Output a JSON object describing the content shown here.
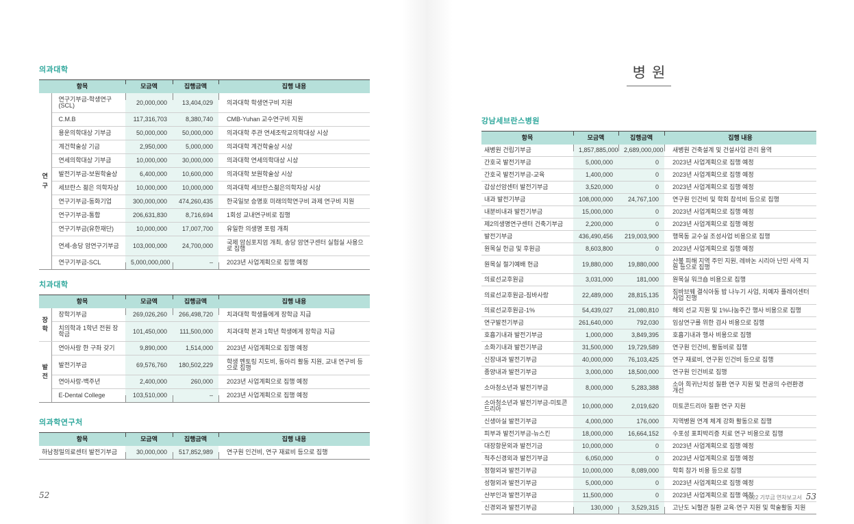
{
  "report": {
    "colors": {
      "accent": "#2fa79c",
      "table_header_bg": "#b6e0da",
      "amount_column_bg": "#e8f5f2"
    },
    "left_page": {
      "page_number": "52",
      "sections": [
        {
          "title": "의과대학",
          "columns": [
            "항목",
            "모금액",
            "집행금액",
            "집행 내용"
          ],
          "groups": [
            {
              "label": "연구",
              "span": 12
            }
          ],
          "rows": [
            [
              "연구기부금-학생연구(SCL)",
              "20,000,000",
              "13,404,029",
              "의과대학 학생연구비 지원"
            ],
            [
              "C.M.B",
              "117,316,703",
              "8,380,740",
              "CMB-Yuhan 교수연구비 지원"
            ],
            [
              "용운의학대상 기부금",
              "50,000,000",
              "50,000,000",
              "의과대학 주관 연세조락교의학대상 시상"
            ],
            [
              "계건학술상 기금",
              "2,950,000",
              "5,000,000",
              "의과대학 계건학술상 시상"
            ],
            [
              "연세의학대상 기부금",
              "10,000,000",
              "30,000,000",
              "의과대학 연세의학대상 시상"
            ],
            [
              "발전기부금-보원학술상",
              "6,400,000",
              "10,600,000",
              "의과대학 보원학술상 시상"
            ],
            [
              "세브란스 젊은 의학자상",
              "10,000,000",
              "10,000,000",
              "의과대학 세브란스젊은의학자상 시상"
            ],
            [
              "연구기부금-동화기업",
              "300,000,000",
              "474,260,435",
              "한국일보 승명호 미래의학연구비 과제 연구비 지원"
            ],
            [
              "연구기부금-통합",
              "206,631,830",
              "8,716,694",
              "1회성 교내연구비로 집행"
            ],
            [
              "연구기부금(유한재단)",
              "10,000,000",
              "17,007,700",
              "유일한 의생명 포럼 개최"
            ],
            [
              "연세-송당 암연구기부금",
              "103,000,000",
              "24,700,000",
              "국제 암심포지엄 개최, 송당 암연구센터 실험실 사용으로 집행"
            ],
            [
              "연구기부금-SCL",
              "5,000,000,000",
              "–",
              "2023년 사업계획으로 집행 예정"
            ]
          ]
        },
        {
          "title": "치과대학",
          "columns": [
            "항목",
            "모금액",
            "집행금액",
            "집행 내용"
          ],
          "groups": [
            {
              "label": "장학",
              "span": 2
            },
            {
              "label": "발전",
              "span": 4
            }
          ],
          "rows": [
            [
              "장학기부금",
              "269,026,260",
              "266,498,720",
              "치과대학 학생들에게 장학금 지급"
            ],
            [
              "치의학과 1학년 전원 장학금",
              "101,450,000",
              "111,500,000",
              "치과대학 본과 1학년 학생에게 장학금 지급"
            ],
            [
              "연아사랑 한 구좌 갖기",
              "9,890,000",
              "1,514,000",
              "2023년 사업계획으로 집행 예정"
            ],
            [
              "발전기부금",
              "69,576,760",
              "180,502,229",
              "학생 멘토링 지도비, 동아리 활동 지원, 교내 연구비 등으로 집행"
            ],
            [
              "연아사랑-백주년",
              "2,400,000",
              "260,000",
              "2023년 사업계획으로 집행 예정"
            ],
            [
              "E-Dental College",
              "103,510,000",
              "–",
              "2023년 사업계획으로 집행 예정"
            ]
          ]
        },
        {
          "title": "의과학연구처",
          "columns": [
            "항목",
            "모금액",
            "집행금액",
            "집행 내용"
          ],
          "rows": [
            [
              "하남정밀의료센터 발전기부금",
              "30,000,000",
              "517,852,989",
              "연구원 인건비, 연구 재료비 등으로 집행"
            ]
          ]
        }
      ]
    },
    "right_page": {
      "page_title": "병원",
      "page_number": "53",
      "footer_text": "2022 기부금 연차보고서",
      "sections": [
        {
          "title": "강남세브란스병원",
          "columns": [
            "항목",
            "모금액",
            "집행금액",
            "집행 내용"
          ],
          "rows": [
            [
              "새병원 건립기부금",
              "1,857,885,000",
              "2,689,000,000",
              "새병원 건축설계 및 건설사업 관리 용역"
            ],
            [
              "간호국 발전기부금",
              "5,000,000",
              "0",
              "2023년 사업계획으로 집행 예정"
            ],
            [
              "간호국 발전기부금-교육",
              "1,400,000",
              "0",
              "2023년 사업계획으로 집행 예정"
            ],
            [
              "갑상선암센터 발전기부금",
              "3,520,000",
              "0",
              "2023년 사업계획으로 집행 예정"
            ],
            [
              "내과 발전기부금",
              "108,000,000",
              "24,767,100",
              "연구원 인건비 및 학회 참석비 등으로 집행"
            ],
            [
              "내분비내과 발전기부금",
              "15,000,000",
              "0",
              "2023년 사업계획으로 집행 예정"
            ],
            [
              "제2의생명연구센터 건축기부금",
              "2,200,000",
              "0",
              "2023년 사업계획으로 집행 예정"
            ],
            [
              "발전기부금",
              "436,490,456",
              "219,003,900",
              "행목동 교수실 조성사업 비용으로 집행"
            ],
            [
              "원목실 헌금 및 후원금",
              "8,603,800",
              "0",
              "2023년 사업계획으로 집행 예정"
            ],
            [
              "원목실 절기예배 헌금",
              "19,880,000",
              "19,880,000",
              "산불 피해 지역 주민 지원, 레바논 시리아 난민 사역 지원 등으로 집행"
            ],
            [
              "의료선교후원금",
              "3,031,000",
              "181,000",
              "원목실 워크숍 비용으로 집행"
            ],
            [
              "의료선교후원금-짐바사랑",
              "22,489,000",
              "28,815,135",
              "짐바브웨 결식아동 밥 나누기 사업, 치예자 플레이센터 사업 진행"
            ],
            [
              "의료선교후원금-1%",
              "54,439,027",
              "21,080,810",
              "해외 선교 지원 및 1%나눔주간 행사 비용으로 집행"
            ],
            [
              "연구발전기부금",
              "261,640,000",
              "792,030",
              "임상연구를 위한 검사 비용으로 집행"
            ],
            [
              "호흡기내과 발전기부금",
              "1,000,000",
              "3,849,395",
              "호흡기내과 행사 비용으로 집행"
            ],
            [
              "소화기내과 발전기부금",
              "31,500,000",
              "19,729,589",
              "연구원 인건비, 활동비로 집행"
            ],
            [
              "신장내과 발전기부금",
              "40,000,000",
              "76,103,425",
              "연구 재료비, 연구원 인건비 등으로 집행"
            ],
            [
              "종양내과 발전기부금",
              "3,000,000",
              "18,500,000",
              "연구원 인건비로 집행"
            ],
            [
              "소아청소년과 발전기부금",
              "8,000,000",
              "5,283,388",
              "소아 희귀난치성 질환 연구 지원 및 전공의 수련환경 개선"
            ],
            [
              "소아청소년과 발전기부금-미토콘드리아",
              "10,000,000",
              "2,019,620",
              "미토콘드리아 질환 연구 지원"
            ],
            [
              "신생아실 발전기부금",
              "4,000,000",
              "176,000",
              "지역병원 연계 체계 강화 활동으로 집행"
            ],
            [
              "피부과 발전기부금-뉴스킨",
              "18,000,000",
              "16,664,152",
              "수포성 표피박리증 치료 연구 비용으로 집행"
            ],
            [
              "대장항문외과 발전기금",
              "10,000,000",
              "0",
              "2023년 사업계획으로 집행 예정"
            ],
            [
              "척추신경외과 발전기부금",
              "6,050,000",
              "0",
              "2023년 사업계획으로 집행 예정"
            ],
            [
              "정형외과 발전기부금",
              "10,000,000",
              "8,089,000",
              "학회 참가 비용 등으로 집행"
            ],
            [
              "성형외과 발전기부금",
              "5,000,000",
              "0",
              "2023년 사업계획으로 집행 예정"
            ],
            [
              "산부인과 발전기부금",
              "11,500,000",
              "0",
              "2023년 사업계획으로 집행 예정"
            ],
            [
              "신경외과 발전기부금",
              "130,000",
              "3,529,315",
              "고난도 뇌혈관 질환 교육·연구 지원 및 학술활동 지원"
            ]
          ]
        }
      ]
    }
  }
}
